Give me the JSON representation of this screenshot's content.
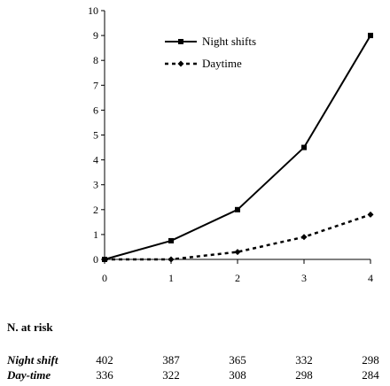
{
  "chart_data": {
    "type": "line",
    "x": [
      0,
      1,
      2,
      3,
      4
    ],
    "xlim": [
      0,
      4
    ],
    "ylim": [
      0,
      10
    ],
    "x_ticks": [
      "0",
      "1",
      "2",
      "3",
      "4"
    ],
    "y_ticks": [
      "0",
      "1",
      "2",
      "3",
      "4",
      "5",
      "6",
      "7",
      "8",
      "9",
      "10"
    ],
    "title": "",
    "xlabel": "",
    "ylabel": "",
    "legend_position": "top-center",
    "series": [
      {
        "name": "Night shifts",
        "values": [
          0,
          0.75,
          2.0,
          4.5,
          9.0
        ],
        "style": "solid",
        "marker": "square",
        "color": "#000000"
      },
      {
        "name": "Daytime",
        "values": [
          0,
          0,
          0.3,
          0.9,
          1.8
        ],
        "style": "dashed",
        "marker": "diamond",
        "color": "#000000"
      }
    ]
  },
  "at_risk": {
    "title": "N. at risk",
    "rows": [
      {
        "label": "Night shift",
        "values": [
          "402",
          "387",
          "365",
          "332",
          "298"
        ]
      },
      {
        "label": "Day-time",
        "values": [
          "336",
          "322",
          "308",
          "298",
          "284"
        ]
      }
    ]
  }
}
